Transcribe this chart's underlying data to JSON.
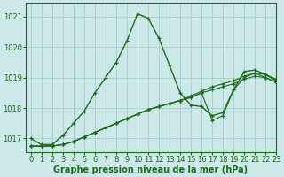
{
  "title": "Graphe pression niveau de la mer (hPa)",
  "bg_color": "#cce8e8",
  "grid_color": "#aacccc",
  "line_color": "#1a6b1a",
  "xlim": [
    -0.5,
    23
  ],
  "ylim": [
    1016.55,
    1021.45
  ],
  "yticks": [
    1017,
    1018,
    1019,
    1020,
    1021
  ],
  "xticks": [
    0,
    1,
    2,
    3,
    4,
    5,
    6,
    7,
    8,
    9,
    10,
    11,
    12,
    13,
    14,
    15,
    16,
    17,
    18,
    19,
    20,
    21,
    22,
    23
  ],
  "series": [
    {
      "x": [
        0,
        1,
        2,
        3,
        4,
        5,
        6,
        7,
        8,
        9,
        10,
        11,
        12,
        13,
        14,
        15,
        16,
        17,
        18,
        19,
        20,
        21,
        22,
        23
      ],
      "y": [
        1017.0,
        1016.8,
        1016.8,
        1017.1,
        1017.5,
        1017.9,
        1018.5,
        1019.0,
        1019.5,
        1020.2,
        1021.1,
        1020.95,
        1020.3,
        1019.4,
        1018.5,
        1018.1,
        1018.05,
        1017.75,
        1017.85,
        1018.6,
        1019.2,
        1019.25,
        1019.1,
        1018.9
      ],
      "lw": 1.0,
      "marker": "+"
    },
    {
      "x": [
        0,
        1,
        2,
        3,
        4,
        5,
        6,
        7,
        8,
        9,
        10,
        11,
        12,
        13,
        14,
        15,
        16,
        17,
        18,
        19,
        20,
        21,
        22,
        23
      ],
      "y": [
        1016.75,
        1016.75,
        1016.75,
        1016.8,
        1016.9,
        1017.05,
        1017.2,
        1017.35,
        1017.5,
        1017.65,
        1017.8,
        1017.95,
        1018.05,
        1018.15,
        1018.25,
        1018.4,
        1018.55,
        1018.7,
        1018.8,
        1018.9,
        1019.05,
        1019.15,
        1019.1,
        1018.95
      ],
      "lw": 0.8,
      "marker": "+"
    },
    {
      "x": [
        0,
        1,
        2,
        3,
        4,
        5,
        6,
        7,
        8,
        9,
        10,
        11,
        12,
        13,
        14,
        15,
        16,
        17,
        18,
        19,
        20,
        21,
        22,
        23
      ],
      "y": [
        1016.75,
        1016.75,
        1016.75,
        1016.8,
        1016.9,
        1017.05,
        1017.2,
        1017.35,
        1017.5,
        1017.65,
        1017.8,
        1017.95,
        1018.05,
        1018.15,
        1018.25,
        1018.35,
        1018.5,
        1018.6,
        1018.7,
        1018.8,
        1018.95,
        1019.05,
        1019.0,
        1018.85
      ],
      "lw": 0.8,
      "marker": "+"
    },
    {
      "x": [
        0,
        1,
        2,
        3,
        4,
        5,
        6,
        7,
        8,
        9,
        10,
        11,
        12,
        13,
        14,
        15,
        16,
        17,
        18,
        19,
        20,
        21,
        22,
        23
      ],
      "y": [
        1016.75,
        1016.75,
        1016.75,
        1016.8,
        1016.9,
        1017.05,
        1017.2,
        1017.35,
        1017.5,
        1017.65,
        1017.8,
        1017.95,
        1018.05,
        1018.15,
        1018.25,
        1018.35,
        1018.5,
        1017.6,
        1017.75,
        1018.6,
        1019.0,
        1019.15,
        1019.0,
        1018.85
      ],
      "lw": 0.8,
      "marker": "+"
    }
  ],
  "marker_size": 3.5,
  "marker_lw": 0.9,
  "label_fontsize": 7,
  "tick_fontsize": 6
}
